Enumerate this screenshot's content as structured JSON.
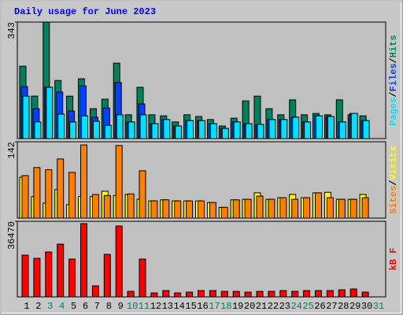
{
  "chart_data": [
    {
      "type": "bar",
      "title": "Daily usage for June 2023",
      "separator": "/",
      "ylim": [
        0,
        343
      ],
      "yticks": [
        343
      ],
      "series": [
        {
          "name": "Hits",
          "color": "#00805c",
          "values": [
            213,
            125,
            343,
            171,
            125,
            176,
            88,
            116,
            222,
            70,
            151,
            70,
            67,
            49,
            70,
            65,
            56,
            37,
            60,
            111,
            125,
            88,
            70,
            114,
            70,
            74,
            70,
            114,
            70,
            67,
            0
          ]
        },
        {
          "name": "Files",
          "color": "#0040ff",
          "values": [
            153,
            88,
            151,
            137,
            81,
            155,
            63,
            90,
            165,
            49,
            102,
            44,
            56,
            37,
            53,
            53,
            44,
            30,
            49,
            44,
            42,
            56,
            56,
            63,
            49,
            67,
            65,
            49,
            74,
            53,
            0
          ]
        },
        {
          "name": "Pages",
          "color": "#00e0ff",
          "values": [
            125,
            49,
            151,
            72,
            49,
            67,
            51,
            39,
            70,
            49,
            70,
            44,
            56,
            37,
            53,
            53,
            44,
            30,
            49,
            44,
            42,
            56,
            56,
            63,
            49,
            67,
            65,
            49,
            74,
            53,
            0
          ]
        }
      ]
    },
    {
      "type": "bar",
      "ylim": [
        0,
        142
      ],
      "yticks": [
        142
      ],
      "series": [
        {
          "name": "Visits",
          "color": "#ffff00",
          "values": [
            76,
            40,
            28,
            53,
            25,
            40,
            40,
            50,
            42,
            44,
            35,
            32,
            34,
            32,
            32,
            32,
            29,
            20,
            34,
            35,
            47,
            35,
            38,
            44,
            38,
            47,
            48,
            35,
            35,
            44,
            0
          ]
        },
        {
          "name": "Sites",
          "color": "#ff8000",
          "values": [
            79,
            94,
            90,
            110,
            85,
            136,
            44,
            42,
            135,
            45,
            88,
            32,
            34,
            32,
            32,
            32,
            29,
            20,
            34,
            35,
            41,
            35,
            38,
            35,
            38,
            47,
            38,
            35,
            35,
            38,
            0
          ]
        }
      ]
    },
    {
      "type": "bar",
      "ylim": [
        0,
        36470
      ],
      "yticks": [
        36470
      ],
      "series": [
        {
          "name": "kB F",
          "color": "#ff0000",
          "values": [
            20135,
            18615,
            21654,
            25453,
            18235,
            35330,
            5319,
            20514,
            34191,
            2659,
            18235,
            1900,
            3039,
            1900,
            2279,
            3039,
            3039,
            2659,
            2659,
            2279,
            2659,
            2659,
            3039,
            2659,
            3039,
            3039,
            3039,
            3419,
            3799,
            2279,
            0
          ]
        }
      ],
      "categories": [
        "1",
        "2",
        "3",
        "4",
        "5",
        "6",
        "7",
        "8",
        "9",
        "10",
        "11",
        "12",
        "13",
        "14",
        "15",
        "16",
        "17",
        "18",
        "19",
        "20",
        "21",
        "22",
        "23",
        "24",
        "25",
        "26",
        "27",
        "28",
        "29",
        "30",
        "31"
      ],
      "category_colors": [
        "#000000",
        "#000000",
        "#00805c",
        "#00805c",
        "#000000",
        "#000000",
        "#000000",
        "#000000",
        "#000000",
        "#00805c",
        "#00805c",
        "#000000",
        "#000000",
        "#000000",
        "#000000",
        "#000000",
        "#00805c",
        "#00805c",
        "#000000",
        "#000000",
        "#000000",
        "#000000",
        "#000000",
        "#00805c",
        "#00805c",
        "#000000",
        "#000000",
        "#000000",
        "#000000",
        "#000000",
        "#00805c"
      ]
    }
  ]
}
